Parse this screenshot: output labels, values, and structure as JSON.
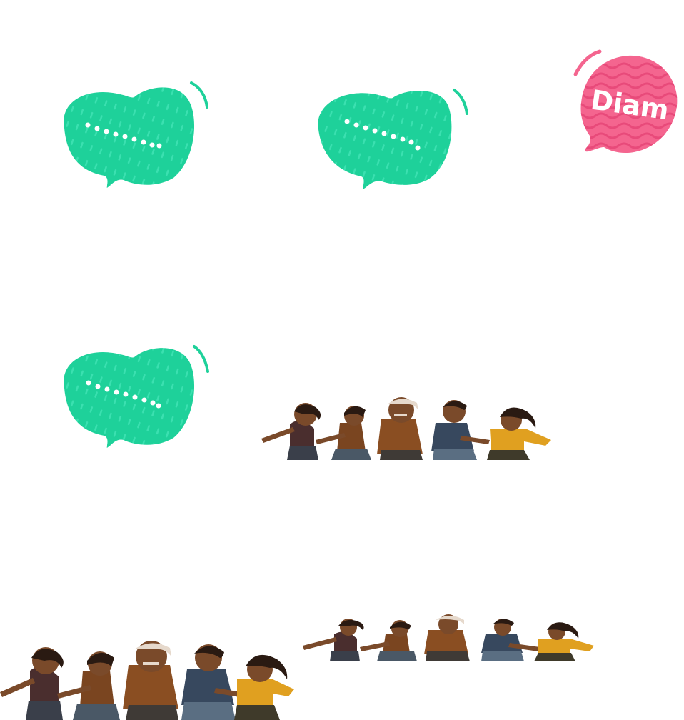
{
  "stickers": {
    "green_bubbles": [
      {
        "label": "typing-bubble",
        "icon": "speech-bubble-icon",
        "color": "#1ED19A"
      },
      {
        "label": "typing-bubble",
        "icon": "speech-bubble-icon",
        "color": "#1ED19A"
      },
      {
        "label": "typing-bubble",
        "icon": "speech-bubble-icon",
        "color": "#1ED19A"
      }
    ],
    "pink_bubble": {
      "text": "Diam",
      "icon": "speech-bubble-icon",
      "color": "#F4658F"
    },
    "crowds": [
      {
        "icon": "people-group-icon"
      },
      {
        "icon": "people-group-icon"
      },
      {
        "icon": "people-group-icon"
      }
    ]
  },
  "colors": {
    "green": "#1ED19A",
    "green_dark": "#13C08A",
    "pink": "#F4658F",
    "pink_wave": "#EE4F7E",
    "skin": "#7A4A2A",
    "hair": "#2A1A12",
    "gray_hair": "#E6D9CC",
    "shirt_yellow": "#E0A020",
    "shirt_blue": "#37485E",
    "shirt_brown": "#8A4E22",
    "pants": "#4A5866"
  }
}
